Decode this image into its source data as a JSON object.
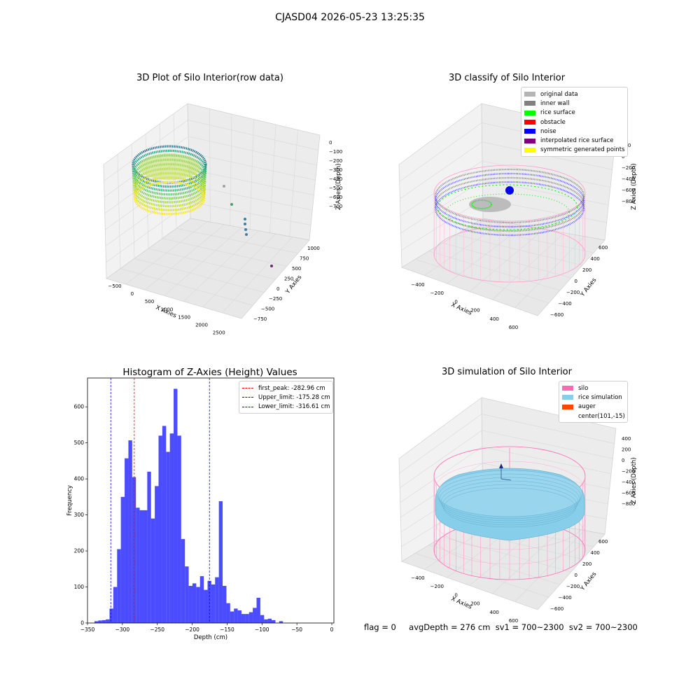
{
  "suptitle": "CJASD04 2026-05-23 13:25:35",
  "panels": [
    {
      "title": "3D Plot of Silo Interior(row data)",
      "x_label": "X Axies",
      "y_label": "Y Axies",
      "z_label": "Z Axies (Depth)",
      "x_ticks": [
        "−500",
        "0",
        "500",
        "1000",
        "1500",
        "2000",
        "2500"
      ],
      "y_ticks": [
        "−750",
        "−500",
        "−250",
        "0",
        "250",
        "500",
        "750",
        "1000"
      ],
      "z_ticks": [
        "0",
        "−100",
        "−200",
        "−300",
        "−400",
        "−500",
        "−600",
        "−700"
      ]
    },
    {
      "title": "3D classify of Silo Interior",
      "x_label": "X Axies",
      "y_label": "Y Axies",
      "z_label": "Z Axies (Depth)",
      "x_ticks": [
        "−400",
        "−200",
        "0",
        "200",
        "400",
        "600"
      ],
      "y_ticks": [
        "−600",
        "−400",
        "−200",
        "0",
        "200",
        "400",
        "600"
      ],
      "z_ticks": [
        "200",
        "0",
        "−200",
        "−400",
        "−600",
        "−800"
      ],
      "legend": [
        {
          "label": "original data",
          "color": "#b4b4b4"
        },
        {
          "label": "inner wall",
          "color": "#808080"
        },
        {
          "label": "rice surface",
          "color": "#00ff00"
        },
        {
          "label": "obstacle",
          "color": "#ff0000"
        },
        {
          "label": "noise",
          "color": "#0000ff"
        },
        {
          "label": "interpolated rice surface",
          "color": "#800080"
        },
        {
          "label": "symmetric generated points",
          "color": "#ffff00"
        }
      ]
    },
    {
      "title": "3D simulation of Silo Interior",
      "x_label": "X Axies",
      "y_label": "Y Axies",
      "z_label": "Z Axies (Depth)",
      "x_ticks": [
        "−400",
        "−200",
        "0",
        "200",
        "400",
        "600"
      ],
      "y_ticks": [
        "−600",
        "−400",
        "−200",
        "0",
        "200",
        "400",
        "600"
      ],
      "z_ticks": [
        "400",
        "200",
        "0",
        "−200",
        "−400",
        "−600",
        "−800"
      ],
      "legend": [
        {
          "label": "silo",
          "color": "#ff69b4"
        },
        {
          "label": "rice simulation",
          "color": "#87ceeb"
        },
        {
          "label": "auger",
          "color": "#ff4500"
        },
        {
          "label": "center(101,-15)",
          "color": ""
        }
      ]
    }
  ],
  "chart_data": {
    "type": "bar",
    "title": "Histogram of Z-Axies (Height) Values",
    "xlabel": "Depth (cm)",
    "ylabel": "Frequency",
    "xlim": [
      -350,
      3
    ],
    "ylim": [
      0,
      680
    ],
    "x_ticks": [
      -350,
      -300,
      -250,
      -200,
      -150,
      -100,
      -50,
      0
    ],
    "y_ticks": [
      0,
      100,
      200,
      300,
      400,
      500,
      600
    ],
    "bin_width": 5.4,
    "bins_start": [
      -340.0,
      -334.6,
      -329.2,
      -323.8,
      -318.4,
      -313.0,
      -307.6,
      -302.2,
      -296.8,
      -291.4,
      -286.0,
      -280.6,
      -275.2,
      -269.8,
      -264.4,
      -259.0,
      -253.6,
      -248.2,
      -242.8,
      -237.4,
      -232.0,
      -226.6,
      -221.2,
      -215.8,
      -210.4,
      -205.0,
      -199.6,
      -194.2,
      -188.8,
      -183.4,
      -178.0,
      -172.6,
      -167.2,
      -161.8,
      -156.4,
      -151.0,
      -145.6,
      -140.2,
      -134.8,
      -129.4,
      -124.0,
      -118.6,
      -113.2,
      -107.8,
      -102.4,
      -97.0,
      -91.6,
      -86.2,
      -80.8,
      -75.4,
      -70.0,
      -64.6,
      -59.2,
      -53.8,
      -48.4,
      -43.0,
      -37.6,
      -32.2,
      -26.8,
      -21.4,
      -16.0,
      -10.6,
      -5.2
    ],
    "counts": [
      5,
      7,
      8,
      10,
      40,
      100,
      205,
      350,
      457,
      507,
      405,
      320,
      313,
      313,
      420,
      290,
      380,
      520,
      547,
      475,
      526,
      650,
      520,
      233,
      157,
      103,
      110,
      100,
      130,
      92,
      117,
      107,
      127,
      338,
      103,
      55,
      32,
      40,
      35,
      25,
      25,
      30,
      42,
      70,
      22,
      10,
      12,
      8,
      0,
      5,
      0,
      0,
      0,
      0,
      0,
      0,
      0,
      0,
      0,
      0,
      0,
      0,
      0
    ],
    "bar_color": "#0000ff",
    "vlines": [
      {
        "label": "first_peak: -282.96 cm",
        "x": -282.96,
        "color": "#ff0000"
      },
      {
        "label": "Upper_limit: -175.28 cm",
        "x": -175.28,
        "color": "#0000ff"
      },
      {
        "label": "Lower_limit: -316.61 cm",
        "x": -316.61,
        "color": "#0000ff"
      }
    ],
    "legend_placement": "upper right"
  },
  "footer": {
    "flag": "flag = 0",
    "avg": "avgDepth = 276 cm  sv1 = 700~2300  sv2 = 700~2300"
  }
}
